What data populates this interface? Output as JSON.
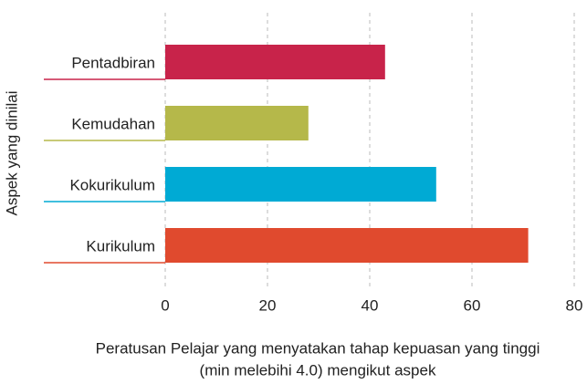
{
  "chart_data": {
    "type": "bar",
    "orientation": "horizontal",
    "categories": [
      "Pentadbiran",
      "Kemudahan",
      "Kokurikulum",
      "Kurikulum"
    ],
    "values": [
      43,
      28,
      53,
      71
    ],
    "colors": [
      "#c8234a",
      "#b5b84a",
      "#00aad4",
      "#e04a2e"
    ],
    "xlim": [
      0,
      80
    ],
    "xticks": [
      0,
      20,
      40,
      60,
      80
    ],
    "grid": true,
    "xlabel": [
      "Peratusan Pelajar yang menyatakan tahap kepuasan yang tinggi",
      "(min melebihi 4.0) mengikut aspek"
    ],
    "ylabel": "Aspek yang dinilai"
  }
}
